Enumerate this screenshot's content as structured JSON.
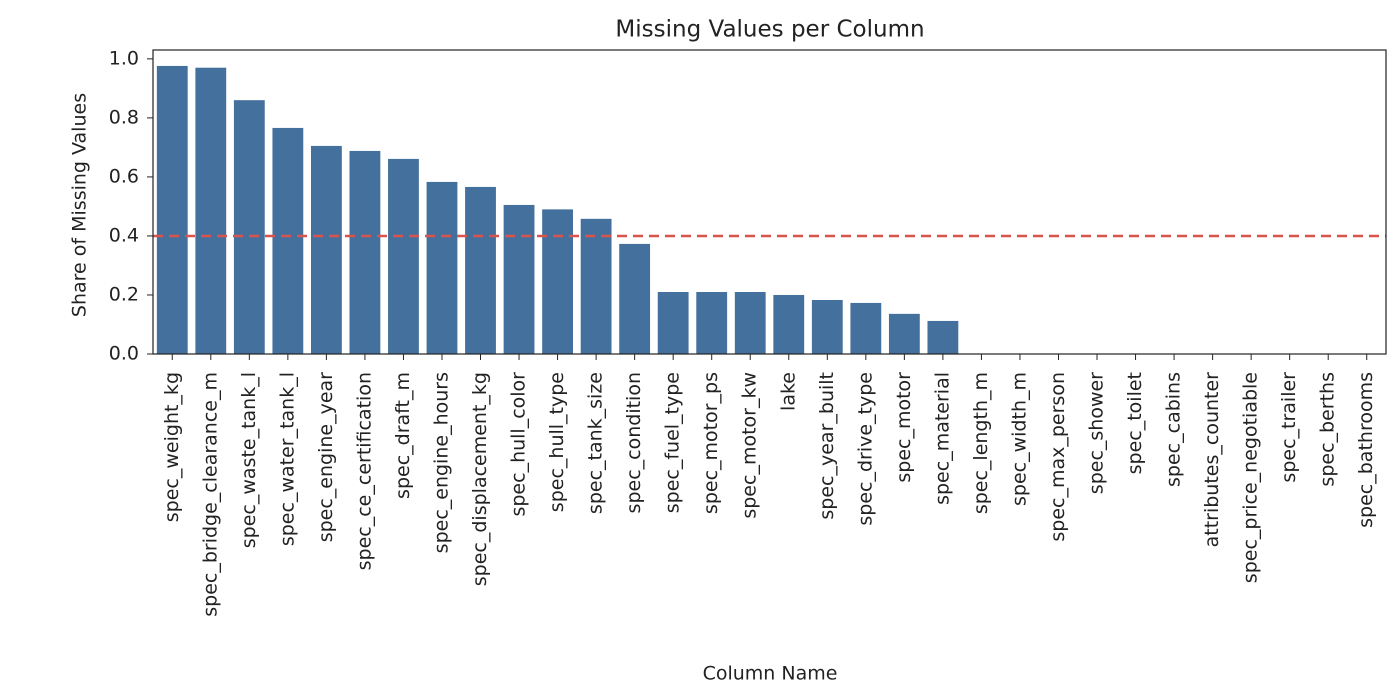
{
  "chart_data": {
    "type": "bar",
    "title": "Missing Values per Column",
    "xlabel": "Column Name",
    "ylabel": "Share of Missing Values",
    "categories": [
      "spec_weight_kg",
      "spec_bridge_clearance_m",
      "spec_waste_tank_l",
      "spec_water_tank_l",
      "spec_engine_year",
      "spec_ce_certification",
      "spec_draft_m",
      "spec_engine_hours",
      "spec_displacement_kg",
      "spec_hull_color",
      "spec_hull_type",
      "spec_tank_size",
      "spec_condition",
      "spec_fuel_type",
      "spec_motor_ps",
      "spec_motor_kw",
      "lake",
      "spec_year_built",
      "spec_drive_type",
      "spec_motor",
      "spec_material",
      "spec_length_m",
      "spec_width_m",
      "spec_max_person",
      "spec_shower",
      "spec_toilet",
      "spec_cabins",
      "attributes_counter",
      "spec_price_negotiable",
      "spec_trailer",
      "spec_berths",
      "spec_bathrooms"
    ],
    "values": [
      0.976,
      0.97,
      0.86,
      0.766,
      0.705,
      0.688,
      0.661,
      0.583,
      0.566,
      0.505,
      0.49,
      0.458,
      0.373,
      0.21,
      0.21,
      0.21,
      0.2,
      0.183,
      0.173,
      0.136,
      0.112,
      0,
      0,
      0,
      0,
      0,
      0,
      0,
      0,
      0,
      0,
      0
    ],
    "color": "#44709d",
    "threshold": 0.4,
    "threshold_color": "#d9534f",
    "ylim": [
      0,
      1.03
    ],
    "yticks": [
      {
        "value": 0,
        "label": "0.0"
      },
      {
        "value": 0.2,
        "label": "0.2"
      },
      {
        "value": 0.4,
        "label": "0.4"
      },
      {
        "value": 0.6,
        "label": "0.6"
      },
      {
        "value": 0.8,
        "label": "0.8"
      },
      {
        "value": 1,
        "label": "1.0"
      }
    ]
  }
}
